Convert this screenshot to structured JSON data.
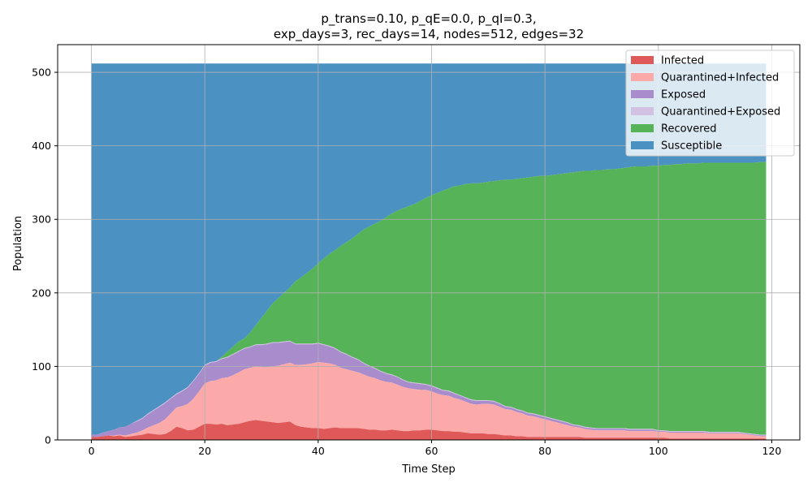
{
  "chart_data": {
    "type": "area",
    "stacked": true,
    "title_lines": [
      "p_trans=0.10, p_qE=0.0, p_qI=0.3,",
      "exp_days=3, rec_days=14, nodes=512, edges=32"
    ],
    "xlabel": "Time Step",
    "ylabel": "Population",
    "xlim": [
      -5.95,
      124.95
    ],
    "ylim": [
      0,
      537.6
    ],
    "xticks": [
      0,
      20,
      40,
      60,
      80,
      100,
      120
    ],
    "yticks": [
      0,
      100,
      200,
      300,
      400,
      500
    ],
    "grid": true,
    "legend_position": "top-right",
    "x_start": 0,
    "x_end": 119,
    "total_population": 512,
    "series": [
      {
        "name": "Infected",
        "color": "#e05959",
        "values": [
          4,
          4,
          5,
          6,
          5,
          6,
          4,
          5,
          6,
          7,
          9,
          8,
          7,
          8,
          12,
          18,
          16,
          13,
          14,
          18,
          22,
          22,
          21,
          22,
          20,
          21,
          22,
          24,
          26,
          27,
          26,
          25,
          24,
          23,
          24,
          25,
          20,
          18,
          17,
          16,
          16,
          15,
          16,
          17,
          16,
          16,
          16,
          16,
          15,
          14,
          14,
          13,
          13,
          14,
          13,
          12,
          12,
          13,
          13,
          14,
          14,
          13,
          12,
          12,
          11,
          11,
          10,
          9,
          9,
          9,
          8,
          8,
          7,
          6,
          6,
          5,
          5,
          4,
          4,
          4,
          4,
          4,
          4,
          4,
          4,
          4,
          4,
          3,
          3,
          3,
          3,
          3,
          3,
          3,
          3,
          3,
          3,
          3,
          3,
          3,
          3,
          3,
          2,
          2,
          2,
          2,
          2,
          2,
          2,
          2,
          2,
          2,
          2,
          2,
          2,
          2,
          2,
          2,
          2,
          2
        ]
      },
      {
        "name": "Quarantined+Infected",
        "color": "#fbaaa9",
        "values": [
          0,
          0,
          0,
          0,
          1,
          1,
          2,
          3,
          4,
          6,
          8,
          12,
          16,
          20,
          24,
          26,
          30,
          36,
          42,
          48,
          55,
          58,
          60,
          62,
          65,
          67,
          70,
          72,
          72,
          73,
          73,
          74,
          76,
          78,
          79,
          80,
          82,
          84,
          86,
          88,
          90,
          90,
          88,
          85,
          82,
          80,
          78,
          76,
          74,
          72,
          70,
          68,
          66,
          64,
          62,
          60,
          58,
          56,
          55,
          54,
          52,
          50,
          49,
          48,
          46,
          44,
          42,
          40,
          39,
          40,
          41,
          40,
          38,
          36,
          35,
          33,
          31,
          29,
          28,
          26,
          24,
          22,
          20,
          18,
          16,
          14,
          13,
          12,
          11,
          10,
          10,
          10,
          10,
          10,
          10,
          9,
          9,
          9,
          9,
          9,
          8,
          8,
          8,
          8,
          8,
          8,
          8,
          8,
          8,
          7,
          7,
          7,
          7,
          7,
          7,
          6,
          5,
          4,
          3,
          3
        ]
      },
      {
        "name": "Exposed",
        "color": "#a98ccb",
        "values": [
          3,
          3,
          5,
          6,
          8,
          10,
          12,
          14,
          15,
          16,
          18,
          20,
          22,
          22,
          20,
          18,
          20,
          22,
          24,
          24,
          24,
          25,
          25,
          26,
          27,
          28,
          28,
          28,
          28,
          29,
          30,
          31,
          32,
          31,
          30,
          29,
          28,
          28,
          27,
          26,
          25,
          24,
          23,
          22,
          21,
          20,
          18,
          17,
          15,
          14,
          13,
          12,
          11,
          10,
          10,
          9,
          8,
          8,
          8,
          7,
          7,
          7,
          6,
          6,
          6,
          5,
          5,
          5,
          5,
          4,
          4,
          4,
          4,
          3,
          3,
          3,
          3,
          3,
          3,
          3,
          3,
          3,
          3,
          3,
          3,
          2,
          2,
          2,
          2,
          2,
          2,
          2,
          2,
          2,
          2,
          2,
          2,
          2,
          2,
          2,
          1,
          1,
          1,
          1,
          1,
          1,
          1,
          1,
          1,
          1,
          1,
          1,
          1,
          1,
          1,
          1,
          1,
          1,
          1,
          1
        ]
      },
      {
        "name": "Quarantined+Exposed",
        "color": "#d3c1e3",
        "values": [
          0,
          0,
          0,
          0,
          0,
          0,
          0,
          0,
          1,
          1,
          1,
          1,
          1,
          1,
          1,
          1,
          1,
          1,
          1,
          1,
          1,
          1,
          1,
          1,
          1,
          1,
          1,
          1,
          1,
          1,
          1,
          1,
          1,
          1,
          1,
          1,
          1,
          1,
          1,
          1,
          1,
          1,
          1,
          1,
          1,
          1,
          1,
          1,
          1,
          1,
          1,
          1,
          1,
          1,
          1,
          1,
          1,
          1,
          1,
          1,
          1,
          1,
          1,
          1,
          1,
          1,
          1,
          1,
          1,
          1,
          1,
          1,
          1,
          1,
          1,
          1,
          1,
          1,
          1,
          1,
          1,
          1,
          1,
          1,
          1,
          1,
          1,
          1,
          1,
          1,
          1,
          1,
          1,
          1,
          1,
          1,
          1,
          1,
          1,
          1,
          1,
          1,
          1,
          1,
          1,
          1,
          1,
          1,
          1,
          1,
          1,
          1,
          1,
          1,
          1,
          1,
          1,
          1,
          1,
          1
        ]
      },
      {
        "name": "Recovered",
        "color": "#57b357",
        "cumulative_top": [
          7,
          7,
          10,
          12,
          14,
          17,
          18,
          22,
          26,
          30,
          36,
          41,
          46,
          51,
          57,
          63,
          67,
          72,
          81,
          91,
          102,
          106,
          107,
          113,
          120,
          127,
          134,
          138,
          146,
          156,
          166,
          176,
          186,
          193,
          200,
          207,
          216,
          221,
          227,
          233,
          240,
          247,
          253,
          258,
          264,
          269,
          274,
          280,
          286,
          290,
          294,
          298,
          303,
          308,
          312,
          315,
          318,
          321,
          325,
          329,
          333,
          336,
          339,
          342,
          345,
          346,
          348,
          349,
          349,
          350,
          351,
          352,
          353,
          354,
          354,
          355,
          356,
          357,
          358,
          359,
          359,
          360,
          361,
          362,
          363,
          364,
          365,
          366,
          366,
          367,
          367,
          368,
          368,
          369,
          370,
          371,
          372,
          372,
          372,
          373,
          373,
          374,
          374,
          375,
          375,
          376,
          376,
          376,
          377,
          377,
          377,
          377,
          377,
          377,
          377,
          377,
          377,
          377,
          378,
          378
        ]
      },
      {
        "name": "Susceptible",
        "color": "#4b91c2",
        "cumulative_top": 512
      }
    ],
    "legend_order": [
      "Infected",
      "Quarantined+Infected",
      "Exposed",
      "Quarantined+Exposed",
      "Recovered",
      "Susceptible"
    ]
  }
}
